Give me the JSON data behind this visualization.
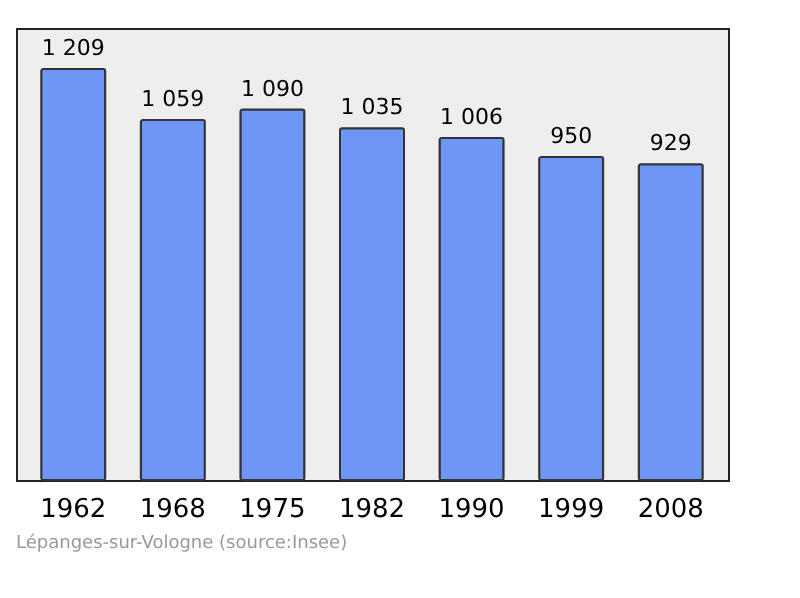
{
  "chart_data": {
    "type": "bar",
    "categories": [
      "1962",
      "1968",
      "1975",
      "1982",
      "1990",
      "1999",
      "2008"
    ],
    "values": [
      1209,
      1059,
      1090,
      1035,
      1006,
      950,
      929
    ],
    "value_labels": [
      "1 209",
      "1 059",
      "1 090",
      "1 035",
      "1 006",
      "950",
      "929"
    ],
    "color": "#6f96f7",
    "annotations": [
      "Lépanges-sur-Vologne    (source:Insee)"
    ],
    "grid": false
  }
}
